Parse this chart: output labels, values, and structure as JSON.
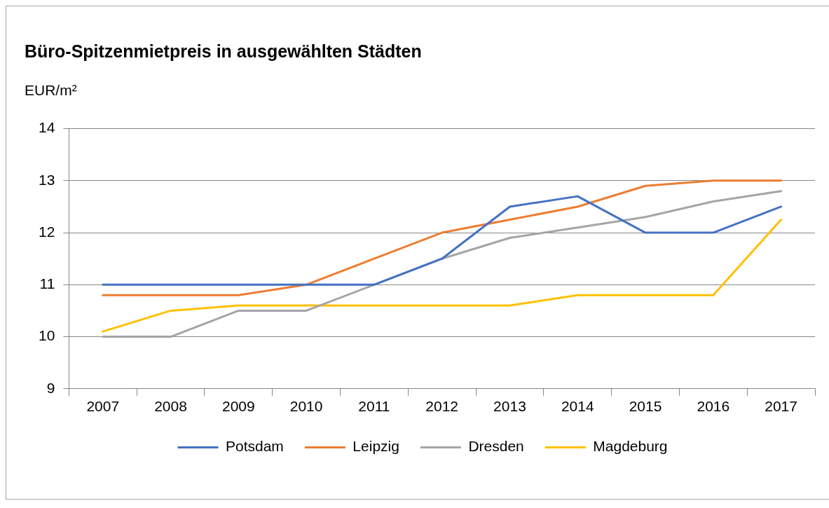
{
  "chart_data": {
    "type": "line",
    "title": "Büro-Spitzenmietpreis in ausgewählten Städten",
    "ylabel": "EUR/m²",
    "categories": [
      "2007",
      "2008",
      "2009",
      "2010",
      "2011",
      "2012",
      "2013",
      "2014",
      "2015",
      "2016",
      "2017"
    ],
    "series": [
      {
        "name": "Potsdam",
        "color": "#4472c4",
        "values": [
          11,
          11,
          11,
          11,
          11,
          11.5,
          12.5,
          12.7,
          12,
          12,
          12.5
        ]
      },
      {
        "name": "Leipzig",
        "color": "#ed7d31",
        "values": [
          10.8,
          10.8,
          10.8,
          11,
          11.5,
          12,
          12.25,
          12.5,
          12.9,
          13,
          13
        ]
      },
      {
        "name": "Dresden",
        "color": "#a5a5a5",
        "values": [
          10,
          10,
          10.5,
          10.5,
          11,
          11.5,
          11.9,
          12.1,
          12.3,
          12.6,
          12.8
        ]
      },
      {
        "name": "Magdeburg",
        "color": "#ffc000",
        "values": [
          10.1,
          10.5,
          10.6,
          10.6,
          10.6,
          10.6,
          10.6,
          10.8,
          10.8,
          10.8,
          12.25
        ]
      }
    ],
    "ylim": [
      9,
      14
    ],
    "yticks": [
      9,
      10,
      11,
      12,
      13,
      14
    ],
    "grid": "y",
    "legend": "bottom",
    "marker": "none",
    "line_style": "solid"
  }
}
